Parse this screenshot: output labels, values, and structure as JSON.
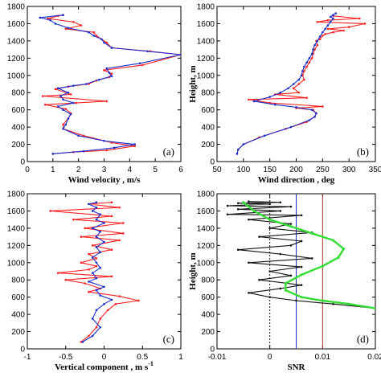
{
  "colors": {
    "red": "#ff2020",
    "blue": "#1a2fd0",
    "black": "#111111",
    "green": "#33dd33",
    "brown": "#b03020"
  },
  "chart_data": [
    {
      "type": "line",
      "panel_label": "(a)",
      "xlabel": "Wind velocity , m/s",
      "ylabel": "",
      "xlim": [
        0,
        6
      ],
      "ylim": [
        0,
        1800
      ],
      "xticks": [
        0,
        1,
        2,
        3,
        4,
        5,
        6
      ],
      "yticks": [
        0,
        200,
        400,
        600,
        800,
        1000,
        1200,
        1400,
        1600,
        1800
      ],
      "series": [
        {
          "color": "red",
          "x": [
            1.0,
            1.8,
            3.1,
            4.2,
            3.3,
            2.2,
            1.4,
            1.4,
            1.6,
            1.7,
            1.5,
            0.7,
            1.9,
            3.1,
            0.6,
            1.7,
            1.1,
            1.6,
            2.4,
            2.7,
            3.2,
            3.3,
            3.0,
            4.5,
            6.0,
            4.8,
            3.3,
            3.1,
            2.9,
            2.7,
            2.6,
            1.5,
            2.1,
            1.8,
            0.8,
            1.2,
            1.4
          ],
          "y": [
            90,
            110,
            130,
            180,
            220,
            300,
            380,
            430,
            500,
            560,
            610,
            660,
            680,
            700,
            760,
            780,
            840,
            870,
            900,
            940,
            980,
            1020,
            1060,
            1120,
            1240,
            1280,
            1320,
            1380,
            1420,
            1460,
            1500,
            1540,
            1580,
            1620,
            1660,
            1690,
            1700
          ]
        },
        {
          "color": "blue",
          "x": [
            1.0,
            2.2,
            3.4,
            4.2,
            3.0,
            2.0,
            1.4,
            1.5,
            1.6,
            1.7,
            1.4,
            1.2,
            1.8,
            1.4,
            1.3,
            1.6,
            1.2,
            1.8,
            2.3,
            2.8,
            3.3,
            3.2,
            3.1,
            4.4,
            6.0,
            4.7,
            3.3,
            3.0,
            2.9,
            2.6,
            2.4,
            1.6,
            1.1,
            0.9,
            0.5,
            1.4
          ],
          "y": [
            90,
            120,
            160,
            200,
            240,
            300,
            380,
            430,
            500,
            550,
            600,
            640,
            680,
            720,
            760,
            800,
            850,
            880,
            900,
            950,
            990,
            1030,
            1080,
            1140,
            1240,
            1280,
            1320,
            1380,
            1420,
            1460,
            1500,
            1550,
            1600,
            1640,
            1670,
            1700
          ]
        }
      ]
    },
    {
      "type": "line",
      "panel_label": "(b)",
      "xlabel": "Wind direction , deg",
      "ylabel": "Height, m",
      "xlim": [
        50,
        350
      ],
      "ylim": [
        0,
        1800
      ],
      "xticks": [
        50,
        100,
        150,
        200,
        250,
        300,
        350
      ],
      "yticks": [
        0,
        200,
        400,
        600,
        800,
        1000,
        1200,
        1400,
        1600,
        1800
      ],
      "series": [
        {
          "color": "red",
          "x": [
            88,
            90,
            100,
            130,
            180,
            220,
            235,
            238,
            232,
            200,
            250,
            150,
            110,
            220,
            160,
            205,
            195,
            205,
            215,
            212,
            215,
            220,
            225,
            230,
            232,
            235,
            240,
            238,
            245,
            250,
            255,
            270,
            290,
            260,
            300,
            330,
            240,
            260,
            320,
            270
          ],
          "y": [
            90,
            140,
            200,
            280,
            380,
            460,
            520,
            560,
            600,
            620,
            640,
            680,
            720,
            740,
            780,
            800,
            850,
            900,
            950,
            1000,
            1050,
            1100,
            1150,
            1200,
            1250,
            1300,
            1350,
            1400,
            1420,
            1460,
            1480,
            1500,
            1520,
            1540,
            1560,
            1600,
            1620,
            1640,
            1660,
            1690
          ]
        },
        {
          "color": "blue",
          "x": [
            88,
            90,
            100,
            140,
            190,
            225,
            235,
            238,
            230,
            200,
            160,
            120,
            150,
            170,
            185,
            195,
            205,
            210,
            212,
            215,
            220,
            225,
            230,
            232,
            235,
            240,
            245,
            250,
            255,
            260,
            265,
            270,
            265,
            270,
            275
          ],
          "y": [
            90,
            140,
            200,
            300,
            400,
            480,
            520,
            560,
            600,
            630,
            660,
            700,
            750,
            800,
            850,
            900,
            950,
            1000,
            1050,
            1100,
            1150,
            1200,
            1250,
            1300,
            1350,
            1400,
            1450,
            1500,
            1540,
            1580,
            1620,
            1660,
            1680,
            1700,
            1720
          ]
        }
      ]
    },
    {
      "type": "line",
      "panel_label": "(c)",
      "xlabel": "Vertical component , m s",
      "xlabel_sup": "-1",
      "ylabel": "",
      "xlim": [
        -1,
        1
      ],
      "ylim": [
        0,
        1800
      ],
      "xticks": [
        -1,
        -0.5,
        0,
        0.5,
        1
      ],
      "yticks": [
        0,
        200,
        400,
        600,
        800,
        1000,
        1200,
        1400,
        1600,
        1800
      ],
      "series": [
        {
          "color": "red",
          "x": [
            -0.3,
            -0.2,
            -0.1,
            -0.05,
            0.05,
            0.15,
            0.45,
            0.2,
            -0.2,
            -0.05,
            -0.25,
            -0.5,
            0.1,
            -0.6,
            -0.2,
            -0.1,
            -0.3,
            -0.1,
            -0.2,
            0.1,
            -0.15,
            0.2,
            -0.3,
            0.25,
            -0.25,
            0.25,
            -0.4,
            0.1,
            -0.7,
            0.2,
            -0.2,
            0.1
          ],
          "y": [
            80,
            150,
            250,
            350,
            450,
            520,
            560,
            610,
            660,
            700,
            760,
            800,
            840,
            880,
            920,
            960,
            1000,
            1050,
            1100,
            1150,
            1200,
            1260,
            1300,
            1340,
            1400,
            1460,
            1500,
            1540,
            1600,
            1640,
            1680,
            1700
          ]
        },
        {
          "color": "blue",
          "x": [
            -0.28,
            -0.15,
            -0.05,
            -0.15,
            -0.1,
            0.0,
            0.1,
            -0.05,
            -0.1,
            0.0,
            -0.2,
            -0.1,
            -0.15,
            -0.05,
            -0.1,
            -0.15,
            -0.05,
            -0.1,
            0.0,
            -0.1,
            -0.05,
            -0.15,
            0.0,
            -0.1,
            -0.05,
            -0.15,
            -0.1,
            -0.2,
            -0.1
          ],
          "y": [
            80,
            150,
            250,
            350,
            450,
            520,
            570,
            620,
            680,
            720,
            780,
            820,
            880,
            940,
            1000,
            1060,
            1120,
            1180,
            1240,
            1300,
            1360,
            1400,
            1460,
            1500,
            1560,
            1600,
            1640,
            1680,
            1700
          ]
        }
      ]
    },
    {
      "type": "line",
      "panel_label": "(d)",
      "xlabel": "SNR",
      "ylabel": "Height, m",
      "xlim": [
        -0.01,
        0.02
      ],
      "ylim": [
        0,
        1800
      ],
      "xticks": [
        -0.01,
        0,
        0.01,
        0.02
      ],
      "yticks": [
        0,
        200,
        400,
        600,
        800,
        1000,
        1200,
        1400,
        1600,
        1800
      ],
      "vlines": [
        {
          "x": 0,
          "color": "black",
          "style": "dotted"
        },
        {
          "x": 0.005,
          "color": "blue",
          "style": "solid"
        },
        {
          "x": 0.01,
          "color": "brown",
          "style": "solid"
        }
      ],
      "series": [
        {
          "color": "black",
          "x": [
            0.02,
            0.012,
            0.005,
            0.0,
            -0.004,
            0.002,
            0.006,
            -0.002,
            0.004,
            0.0,
            0.006,
            -0.004,
            0.008,
            0.002,
            -0.006,
            0.004,
            0.006,
            -0.002,
            0.008,
            0.0,
            0.004,
            -0.004,
            0.006,
            -0.008,
            0.002,
            -0.006,
            0.004,
            -0.008,
            0.0,
            -0.006,
            0.002,
            -0.004
          ],
          "y": [
            470,
            520,
            560,
            600,
            650,
            700,
            740,
            800,
            850,
            900,
            950,
            1000,
            1050,
            1100,
            1150,
            1200,
            1250,
            1300,
            1350,
            1400,
            1450,
            1500,
            1550,
            1560,
            1600,
            1620,
            1650,
            1660,
            1680,
            1690,
            1700,
            1710
          ]
        },
        {
          "color": "green",
          "x": [
            0.02,
            0.015,
            0.01,
            0.006,
            0.003,
            0.003,
            0.006,
            0.01,
            0.013,
            0.014,
            0.012,
            0.008,
            0.004,
            0.0,
            -0.003,
            -0.005
          ],
          "y": [
            470,
            520,
            560,
            600,
            680,
            760,
            860,
            960,
            1060,
            1160,
            1260,
            1340,
            1420,
            1500,
            1600,
            1700
          ]
        }
      ]
    }
  ]
}
